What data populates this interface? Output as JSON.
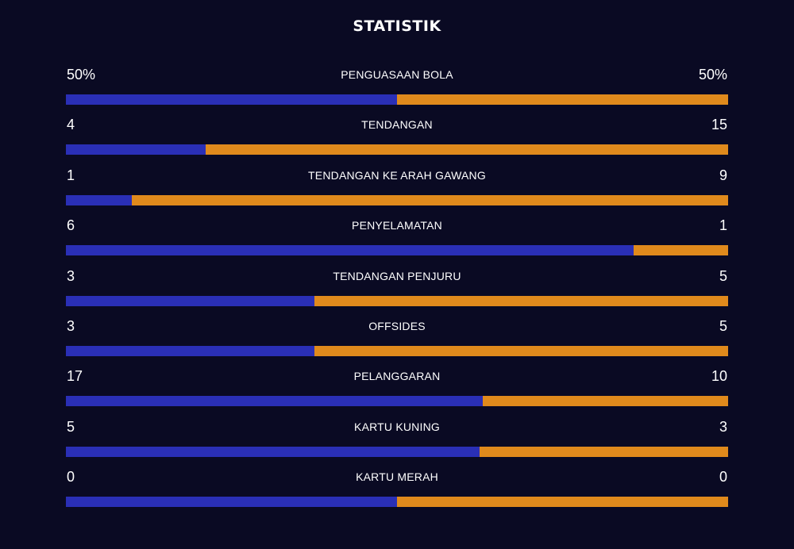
{
  "title": "STATISTIK",
  "colors": {
    "background": "#0a0a23",
    "home": "#2a2fb6",
    "away": "#e08a1c"
  },
  "stats": [
    {
      "label": "PENGUASAAN BOLA",
      "home": "50%",
      "away": "50%",
      "home_share": 0.5
    },
    {
      "label": "TENDANGAN",
      "home": "4",
      "away": "15",
      "home_share": 0.2105
    },
    {
      "label": "TENDANGAN KE ARAH GAWANG",
      "home": "1",
      "away": "9",
      "home_share": 0.1
    },
    {
      "label": "PENYELAMATAN",
      "home": "6",
      "away": "1",
      "home_share": 0.8571
    },
    {
      "label": "TENDANGAN PENJURU",
      "home": "3",
      "away": "5",
      "home_share": 0.375
    },
    {
      "label": "OFFSIDES",
      "home": "3",
      "away": "5",
      "home_share": 0.375
    },
    {
      "label": "PELANGGARAN",
      "home": "17",
      "away": "10",
      "home_share": 0.6296
    },
    {
      "label": "KARTU KUNING",
      "home": "5",
      "away": "3",
      "home_share": 0.625
    },
    {
      "label": "KARTU MERAH",
      "home": "0",
      "away": "0",
      "home_share": 0.5
    }
  ]
}
